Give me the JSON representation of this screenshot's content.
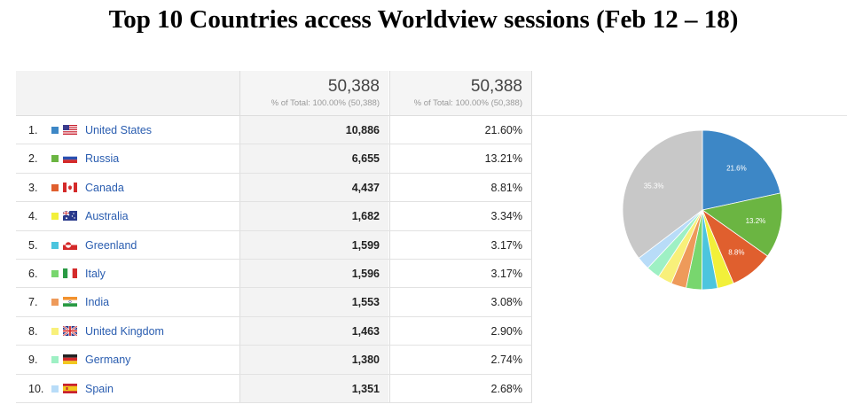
{
  "title": "Top 10 Countries access Worldview sessions (Feb 12 – 18)",
  "header": {
    "col1_total": "50,388",
    "col1_sub": "% of Total: 100.00% (50,388)",
    "col2_total": "50,388",
    "col2_sub": "% of Total: 100.00% (50,388)"
  },
  "rows": [
    {
      "idx": "1.",
      "country": "United States",
      "sessions": "10,886",
      "pct": "21.60%",
      "color": "#3d87c6",
      "flag": "us"
    },
    {
      "idx": "2.",
      "country": "Russia",
      "sessions": "6,655",
      "pct": "13.21%",
      "color": "#6bb542",
      "flag": "ru"
    },
    {
      "idx": "3.",
      "country": "Canada",
      "sessions": "4,437",
      "pct": "8.81%",
      "color": "#e05f2e",
      "flag": "ca"
    },
    {
      "idx": "4.",
      "country": "Australia",
      "sessions": "1,682",
      "pct": "3.34%",
      "color": "#f2f03a",
      "flag": "au"
    },
    {
      "idx": "5.",
      "country": "Greenland",
      "sessions": "1,599",
      "pct": "3.17%",
      "color": "#4cc5de",
      "flag": "gl"
    },
    {
      "idx": "6.",
      "country": "Italy",
      "sessions": "1,596",
      "pct": "3.17%",
      "color": "#78d66e",
      "flag": "it"
    },
    {
      "idx": "7.",
      "country": "India",
      "sessions": "1,553",
      "pct": "3.08%",
      "color": "#ee9a5a",
      "flag": "in"
    },
    {
      "idx": "8.",
      "country": "United Kingdom",
      "sessions": "1,463",
      "pct": "2.90%",
      "color": "#f8f07a",
      "flag": "gb"
    },
    {
      "idx": "9.",
      "country": "Germany",
      "sessions": "1,380",
      "pct": "2.74%",
      "color": "#9ef0c4",
      "flag": "de"
    },
    {
      "idx": "10.",
      "country": "Spain",
      "sessions": "1,351",
      "pct": "2.68%",
      "color": "#b8dcf8",
      "flag": "es"
    }
  ],
  "chart_data": {
    "type": "pie",
    "categories": [
      "United States",
      "Russia",
      "Canada",
      "Australia",
      "Greenland",
      "Italy",
      "India",
      "United Kingdom",
      "Germany",
      "Spain",
      "Other"
    ],
    "values": [
      21.6,
      13.21,
      8.81,
      3.34,
      3.17,
      3.17,
      3.08,
      2.9,
      2.74,
      2.68,
      35.3
    ],
    "colors": [
      "#3d87c6",
      "#6bb542",
      "#e05f2e",
      "#f2f03a",
      "#4cc5de",
      "#78d66e",
      "#ee9a5a",
      "#f8f07a",
      "#9ef0c4",
      "#b8dcf8",
      "#c8c8c8"
    ],
    "slice_labels": [
      "21.6%",
      "13.2%",
      "8.8%",
      "",
      "",
      "",
      "",
      "",
      "",
      "",
      "35.3%"
    ],
    "legend": "none"
  }
}
